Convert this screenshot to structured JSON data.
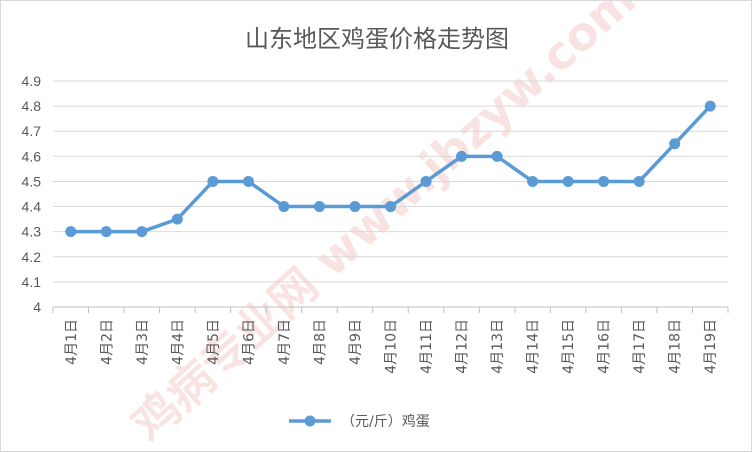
{
  "chart_data": {
    "type": "line",
    "title": "山东地区鸡蛋价格走势图",
    "categories": [
      "4月1日",
      "4月2日",
      "4月3日",
      "4月4日",
      "4月5日",
      "4月6日",
      "4月7日",
      "4月8日",
      "4月9日",
      "4月10日",
      "4月11日",
      "4月12日",
      "4月13日",
      "4月14日",
      "4月15日",
      "4月16日",
      "4月17日",
      "4月18日",
      "4月19日"
    ],
    "series": [
      {
        "name": "（元/斤）鸡蛋",
        "color": "#5b9bd5",
        "values": [
          4.3,
          4.3,
          4.3,
          4.35,
          4.5,
          4.5,
          4.4,
          4.4,
          4.4,
          4.4,
          4.5,
          4.6,
          4.6,
          4.5,
          4.5,
          4.5,
          4.5,
          4.65,
          4.8
        ]
      }
    ],
    "yticks": [
      "4",
      "4.1",
      "4.2",
      "4.3",
      "4.4",
      "4.5",
      "4.6",
      "4.7",
      "4.8",
      "4.9"
    ],
    "ylim": [
      4.0,
      4.9
    ],
    "grid": true,
    "legend": "bottom",
    "watermark": "鸡病专业网 www.jbzyw.com"
  }
}
